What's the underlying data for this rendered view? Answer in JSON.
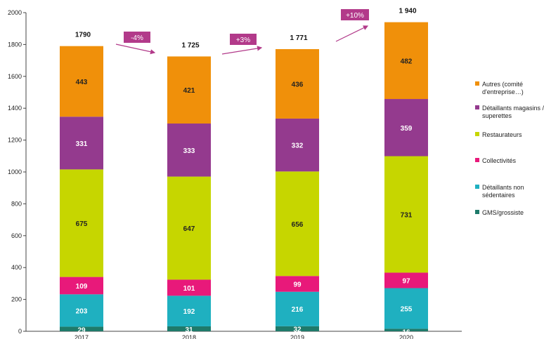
{
  "chart_data": {
    "type": "bar",
    "stacked": true,
    "categories": [
      "2017",
      "2018",
      "2019",
      "2020"
    ],
    "ylim": [
      0,
      2000
    ],
    "yticks": [
      0,
      200,
      400,
      600,
      800,
      1000,
      1200,
      1400,
      1600,
      1800,
      2000
    ],
    "series": [
      {
        "name": "GMS/grossiste",
        "color": "#1e7a6a",
        "values": [
          29,
          31,
          32,
          16
        ]
      },
      {
        "name": "Détaillants non sédentaires",
        "color": "#1fb0c0",
        "values": [
          203,
          192,
          216,
          255
        ]
      },
      {
        "name": "Collectivités",
        "color": "#e8197a",
        "values": [
          109,
          101,
          99,
          97
        ]
      },
      {
        "name": "Restaurateurs",
        "color": "#c6d600",
        "values": [
          675,
          647,
          656,
          731
        ]
      },
      {
        "name": "Détaillants magasins / superettes",
        "color": "#943a8e",
        "values": [
          331,
          333,
          332,
          359
        ]
      },
      {
        "name": "Autres (comité d'entreprise…)",
        "color": "#f0900a",
        "values": [
          443,
          421,
          436,
          482
        ]
      }
    ],
    "totals": [
      "1790",
      "1 725",
      "1 771",
      "1 940"
    ],
    "deltas": [
      {
        "label": "-4%",
        "color": "#b23a8a"
      },
      {
        "label": "+3%",
        "color": "#b23a8a"
      },
      {
        "label": "+10%",
        "color": "#b23a8a"
      }
    ],
    "legend": {
      "position": "right",
      "entries": [
        {
          "series_index": 5,
          "lines": [
            "Autres (comité",
            "d'entreprise…)"
          ]
        },
        {
          "series_index": 4,
          "lines": [
            "Détaillants magasins /",
            "superettes"
          ]
        },
        {
          "series_index": 3,
          "lines": [
            "Restaurateurs"
          ]
        },
        {
          "series_index": 2,
          "lines": [
            "Collectivités"
          ]
        },
        {
          "series_index": 1,
          "lines": [
            "Détaillants non",
            "sédentaires"
          ]
        },
        {
          "series_index": 0,
          "lines": [
            "GMS/grossiste"
          ]
        }
      ]
    },
    "grid": false,
    "title": "",
    "xlabel": "",
    "ylabel": ""
  }
}
